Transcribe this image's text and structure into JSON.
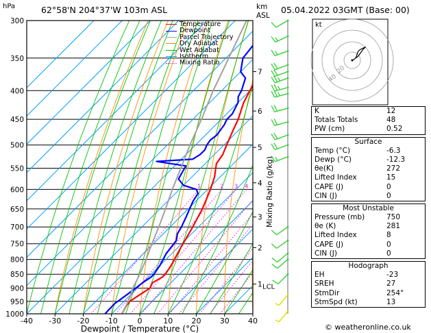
{
  "header": {
    "pressure_unit": "hPa",
    "location": "62°58'N  204°37'W  103m  ASL",
    "km_unit": "km",
    "asl": "ASL",
    "datetime": "05.04.2022  03GMT  (Base: 00)"
  },
  "colors": {
    "temperature": "#ff0000",
    "dewpoint": "#0000ff",
    "parcel": "#a0a0a0",
    "dry_adiabat": "#ff8c00",
    "wet_adiabat": "#00c000",
    "isotherm": "#00a0ff",
    "mixing_ratio": "#ff00ff",
    "wind": "#40d040",
    "wind_low": "#e0e000"
  },
  "legend": [
    {
      "label": "Temperature",
      "style": "solid",
      "color": "#ff0000"
    },
    {
      "label": "Dewpoint",
      "style": "solid",
      "color": "#0000ff"
    },
    {
      "label": "Parcel Trajectory",
      "style": "solid",
      "color": "#a0a0a0"
    },
    {
      "label": "Dry Adiabat",
      "style": "solid",
      "color": "#ff8c00"
    },
    {
      "label": "Wet Adiabat",
      "style": "solid",
      "color": "#00c000"
    },
    {
      "label": "Isotherm",
      "style": "solid",
      "color": "#00a0ff"
    },
    {
      "label": "Mixing Ratio",
      "style": "dotted",
      "color": "#ff00ff"
    }
  ],
  "hodograph": {
    "label": "kt",
    "ring_labels": [
      "20",
      "40"
    ]
  },
  "indices": {
    "K": {
      "label": "K",
      "value": "12"
    },
    "TT": {
      "label": "Totals Totals",
      "value": "48"
    },
    "PW": {
      "label": "PW (cm)",
      "value": "0.52"
    }
  },
  "surface": {
    "title": "Surface",
    "rows": [
      {
        "label": "Temp (°C)",
        "value": "-6.3"
      },
      {
        "label": "Dewp (°C)",
        "value": "-12.3"
      },
      {
        "label": "θe(K)",
        "value": "272"
      },
      {
        "label": "Lifted Index",
        "value": "15"
      },
      {
        "label": "CAPE (J)",
        "value": "0"
      },
      {
        "label": "CIN (J)",
        "value": "0"
      }
    ]
  },
  "most_unstable": {
    "title": "Most Unstable",
    "rows": [
      {
        "label": "Pressure (mb)",
        "value": "750"
      },
      {
        "label": "θe (K)",
        "value": "281"
      },
      {
        "label": "Lifted Index",
        "value": "8"
      },
      {
        "label": "CAPE (J)",
        "value": "0"
      },
      {
        "label": "CIN (J)",
        "value": "0"
      }
    ]
  },
  "hodograph_table": {
    "title": "Hodograph",
    "rows": [
      {
        "label": "EH",
        "value": "-23"
      },
      {
        "label": "SREH",
        "value": "27"
      },
      {
        "label": "StmDir",
        "value": "254°"
      },
      {
        "label": "StmSpd (kt)",
        "value": "13"
      }
    ]
  },
  "footer": "© weatheronline.co.uk",
  "chart_data": {
    "type": "line",
    "xlabel": "Dewpoint / Temperature (°C)",
    "ylabel_right": "Mixing Ratio (g/kg)",
    "xlim": [
      -40,
      40
    ],
    "ylim": [
      1000,
      300
    ],
    "yscale": "log",
    "x_ticks": [
      -40,
      -30,
      -20,
      -10,
      0,
      10,
      20,
      30,
      40
    ],
    "pressure_ticks": [
      300,
      350,
      400,
      450,
      500,
      550,
      600,
      650,
      700,
      750,
      800,
      850,
      900,
      950,
      1000
    ],
    "km_ticks": [
      {
        "label": "1",
        "p": 885
      },
      {
        "label": "2",
        "p": 762
      },
      {
        "label": "3",
        "p": 672
      },
      {
        "label": "4",
        "p": 584
      },
      {
        "label": "5",
        "p": 505
      },
      {
        "label": "6",
        "p": 435
      },
      {
        "label": "7",
        "p": 370
      }
    ],
    "lcl": {
      "label": "LCL",
      "p": 892
    },
    "mixing_ratio_labels": [
      "1",
      "2",
      "3",
      "4",
      "6",
      "8",
      "10",
      "16",
      "20",
      "25"
    ],
    "mixing_ratio_values": [
      1,
      2,
      3,
      4,
      6,
      8,
      10,
      16,
      20,
      25
    ],
    "series": [
      {
        "name": "Temperature",
        "points": [
          [
            1000,
            -6.3
          ],
          [
            970,
            -7.5
          ],
          [
            950,
            -8
          ],
          [
            930,
            -7
          ],
          [
            900,
            -5.5
          ],
          [
            880,
            -6.5
          ],
          [
            860,
            -5
          ],
          [
            850,
            -5
          ],
          [
            820,
            -6
          ],
          [
            800,
            -7
          ],
          [
            760,
            -9
          ],
          [
            700,
            -12
          ],
          [
            650,
            -15
          ],
          [
            600,
            -19
          ],
          [
            570,
            -22
          ],
          [
            540,
            -26
          ],
          [
            520,
            -27
          ],
          [
            500,
            -29
          ],
          [
            470,
            -32
          ],
          [
            450,
            -34
          ],
          [
            420,
            -38
          ],
          [
            400,
            -40
          ],
          [
            380,
            -42
          ],
          [
            360,
            -44
          ],
          [
            340,
            -45
          ],
          [
            320,
            -47
          ],
          [
            300,
            -50
          ]
        ]
      },
      {
        "name": "Dewpoint",
        "points": [
          [
            1000,
            -12.3
          ],
          [
            960,
            -12.5
          ],
          [
            930,
            -11.5
          ],
          [
            900,
            -10.5
          ],
          [
            880,
            -10
          ],
          [
            860,
            -9
          ],
          [
            850,
            -9
          ],
          [
            820,
            -10
          ],
          [
            800,
            -11
          ],
          [
            780,
            -12
          ],
          [
            760,
            -12.5
          ],
          [
            740,
            -13
          ],
          [
            720,
            -15
          ],
          [
            700,
            -16
          ],
          [
            670,
            -18
          ],
          [
            650,
            -19.5
          ],
          [
            630,
            -21
          ],
          [
            610,
            -22
          ],
          [
            600,
            -24
          ],
          [
            590,
            -30
          ],
          [
            575,
            -34
          ],
          [
            560,
            -35
          ],
          [
            545,
            -36
          ],
          [
            535,
            -48
          ],
          [
            530,
            -36
          ],
          [
            520,
            -35
          ],
          [
            510,
            -35
          ],
          [
            500,
            -36
          ],
          [
            490,
            -36.5
          ],
          [
            480,
            -36
          ],
          [
            460,
            -37
          ],
          [
            450,
            -38
          ],
          [
            440,
            -38
          ],
          [
            420,
            -40
          ],
          [
            410,
            -42
          ],
          [
            400,
            -43
          ],
          [
            380,
            -46
          ],
          [
            370,
            -50
          ],
          [
            350,
            -54
          ],
          [
            330,
            -55
          ],
          [
            310,
            -58
          ],
          [
            300,
            -60
          ]
        ]
      },
      {
        "name": "Parcel Trajectory",
        "points": [
          [
            1000,
            -6.3
          ],
          [
            950,
            -8.5
          ],
          [
            900,
            -11.5
          ],
          [
            850,
            -14
          ],
          [
            800,
            -17
          ],
          [
            750,
            -20.5
          ],
          [
            700,
            -24
          ],
          [
            650,
            -28
          ],
          [
            600,
            -32.5
          ],
          [
            550,
            -37
          ],
          [
            500,
            -42
          ],
          [
            450,
            -47
          ],
          [
            400,
            -53
          ],
          [
            350,
            -59
          ],
          [
            300,
            -66
          ]
        ]
      }
    ],
    "wind_barbs": [
      {
        "p": 300,
        "dir": 240,
        "kt": 10
      },
      {
        "p": 320,
        "dir": 245,
        "kt": 15
      },
      {
        "p": 340,
        "dir": 250,
        "kt": 15
      },
      {
        "p": 360,
        "dir": 250,
        "kt": 20
      },
      {
        "p": 370,
        "dir": 250,
        "kt": 20
      },
      {
        "p": 380,
        "dir": 250,
        "kt": 25
      },
      {
        "p": 395,
        "dir": 255,
        "kt": 25
      },
      {
        "p": 405,
        "dir": 255,
        "kt": 25
      },
      {
        "p": 430,
        "dir": 255,
        "kt": 20
      },
      {
        "p": 455,
        "dir": 255,
        "kt": 20
      },
      {
        "p": 480,
        "dir": 250,
        "kt": 20
      },
      {
        "p": 500,
        "dir": 250,
        "kt": 20
      },
      {
        "p": 525,
        "dir": 250,
        "kt": 15
      },
      {
        "p": 700,
        "dir": 235,
        "kt": 10
      },
      {
        "p": 740,
        "dir": 235,
        "kt": 10
      },
      {
        "p": 780,
        "dir": 230,
        "kt": 10
      },
      {
        "p": 800,
        "dir": 230,
        "kt": 10
      },
      {
        "p": 850,
        "dir": 225,
        "kt": 10
      },
      {
        "p": 925,
        "dir": 220,
        "kt": 5
      },
      {
        "p": 990,
        "dir": 220,
        "kt": 5
      }
    ],
    "hodograph_points": [
      [
        0,
        0
      ],
      [
        2,
        1
      ],
      [
        4,
        3
      ],
      [
        5,
        6
      ],
      [
        6,
        9
      ],
      [
        8,
        11
      ],
      [
        10,
        12
      ],
      [
        12,
        13
      ],
      [
        14,
        14
      ],
      [
        11,
        11
      ],
      [
        6,
        4
      ],
      [
        3,
        2
      ]
    ]
  }
}
